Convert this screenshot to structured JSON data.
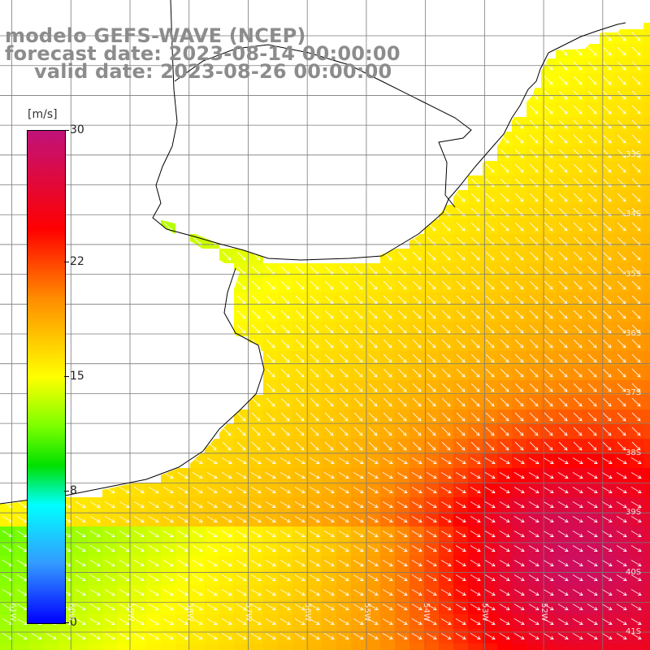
{
  "header": {
    "model": "modelo GEFS-WAVE (NCEP)",
    "forecast": "forecast date: 2023-08-14 00:00:00",
    "valid": "valid date: 2023-08-26 00:00:00"
  },
  "colorbar": {
    "units": "[m/s]",
    "ticks": [
      "30",
      "22",
      "15",
      "8",
      "0"
    ],
    "tick_values": [
      30,
      22,
      15,
      8,
      0
    ],
    "range": [
      0,
      30
    ],
    "colors": [
      "#0000ff",
      "#3399ff",
      "#00ffff",
      "#00e000",
      "#7cff00",
      "#ffff00",
      "#ff8c00",
      "#ff0000",
      "#c0127a"
    ]
  },
  "map": {
    "lat_labels": [
      "33S",
      "34S",
      "35S",
      "36S",
      "37S",
      "38S",
      "39S",
      "40S",
      "41S"
    ],
    "lon_labels": [
      "61W",
      "60W",
      "59W",
      "58W",
      "57W",
      "56W",
      "55W",
      "54W",
      "53W",
      "52W"
    ],
    "lon_range": [
      -61.2,
      -50.2
    ],
    "lat_range": [
      -41.3,
      -30.4
    ],
    "land_color": "#ffffff",
    "grid_color": "#7a7a7a",
    "arrow_color": "#ffffff",
    "coast_color": "#000000"
  }
}
